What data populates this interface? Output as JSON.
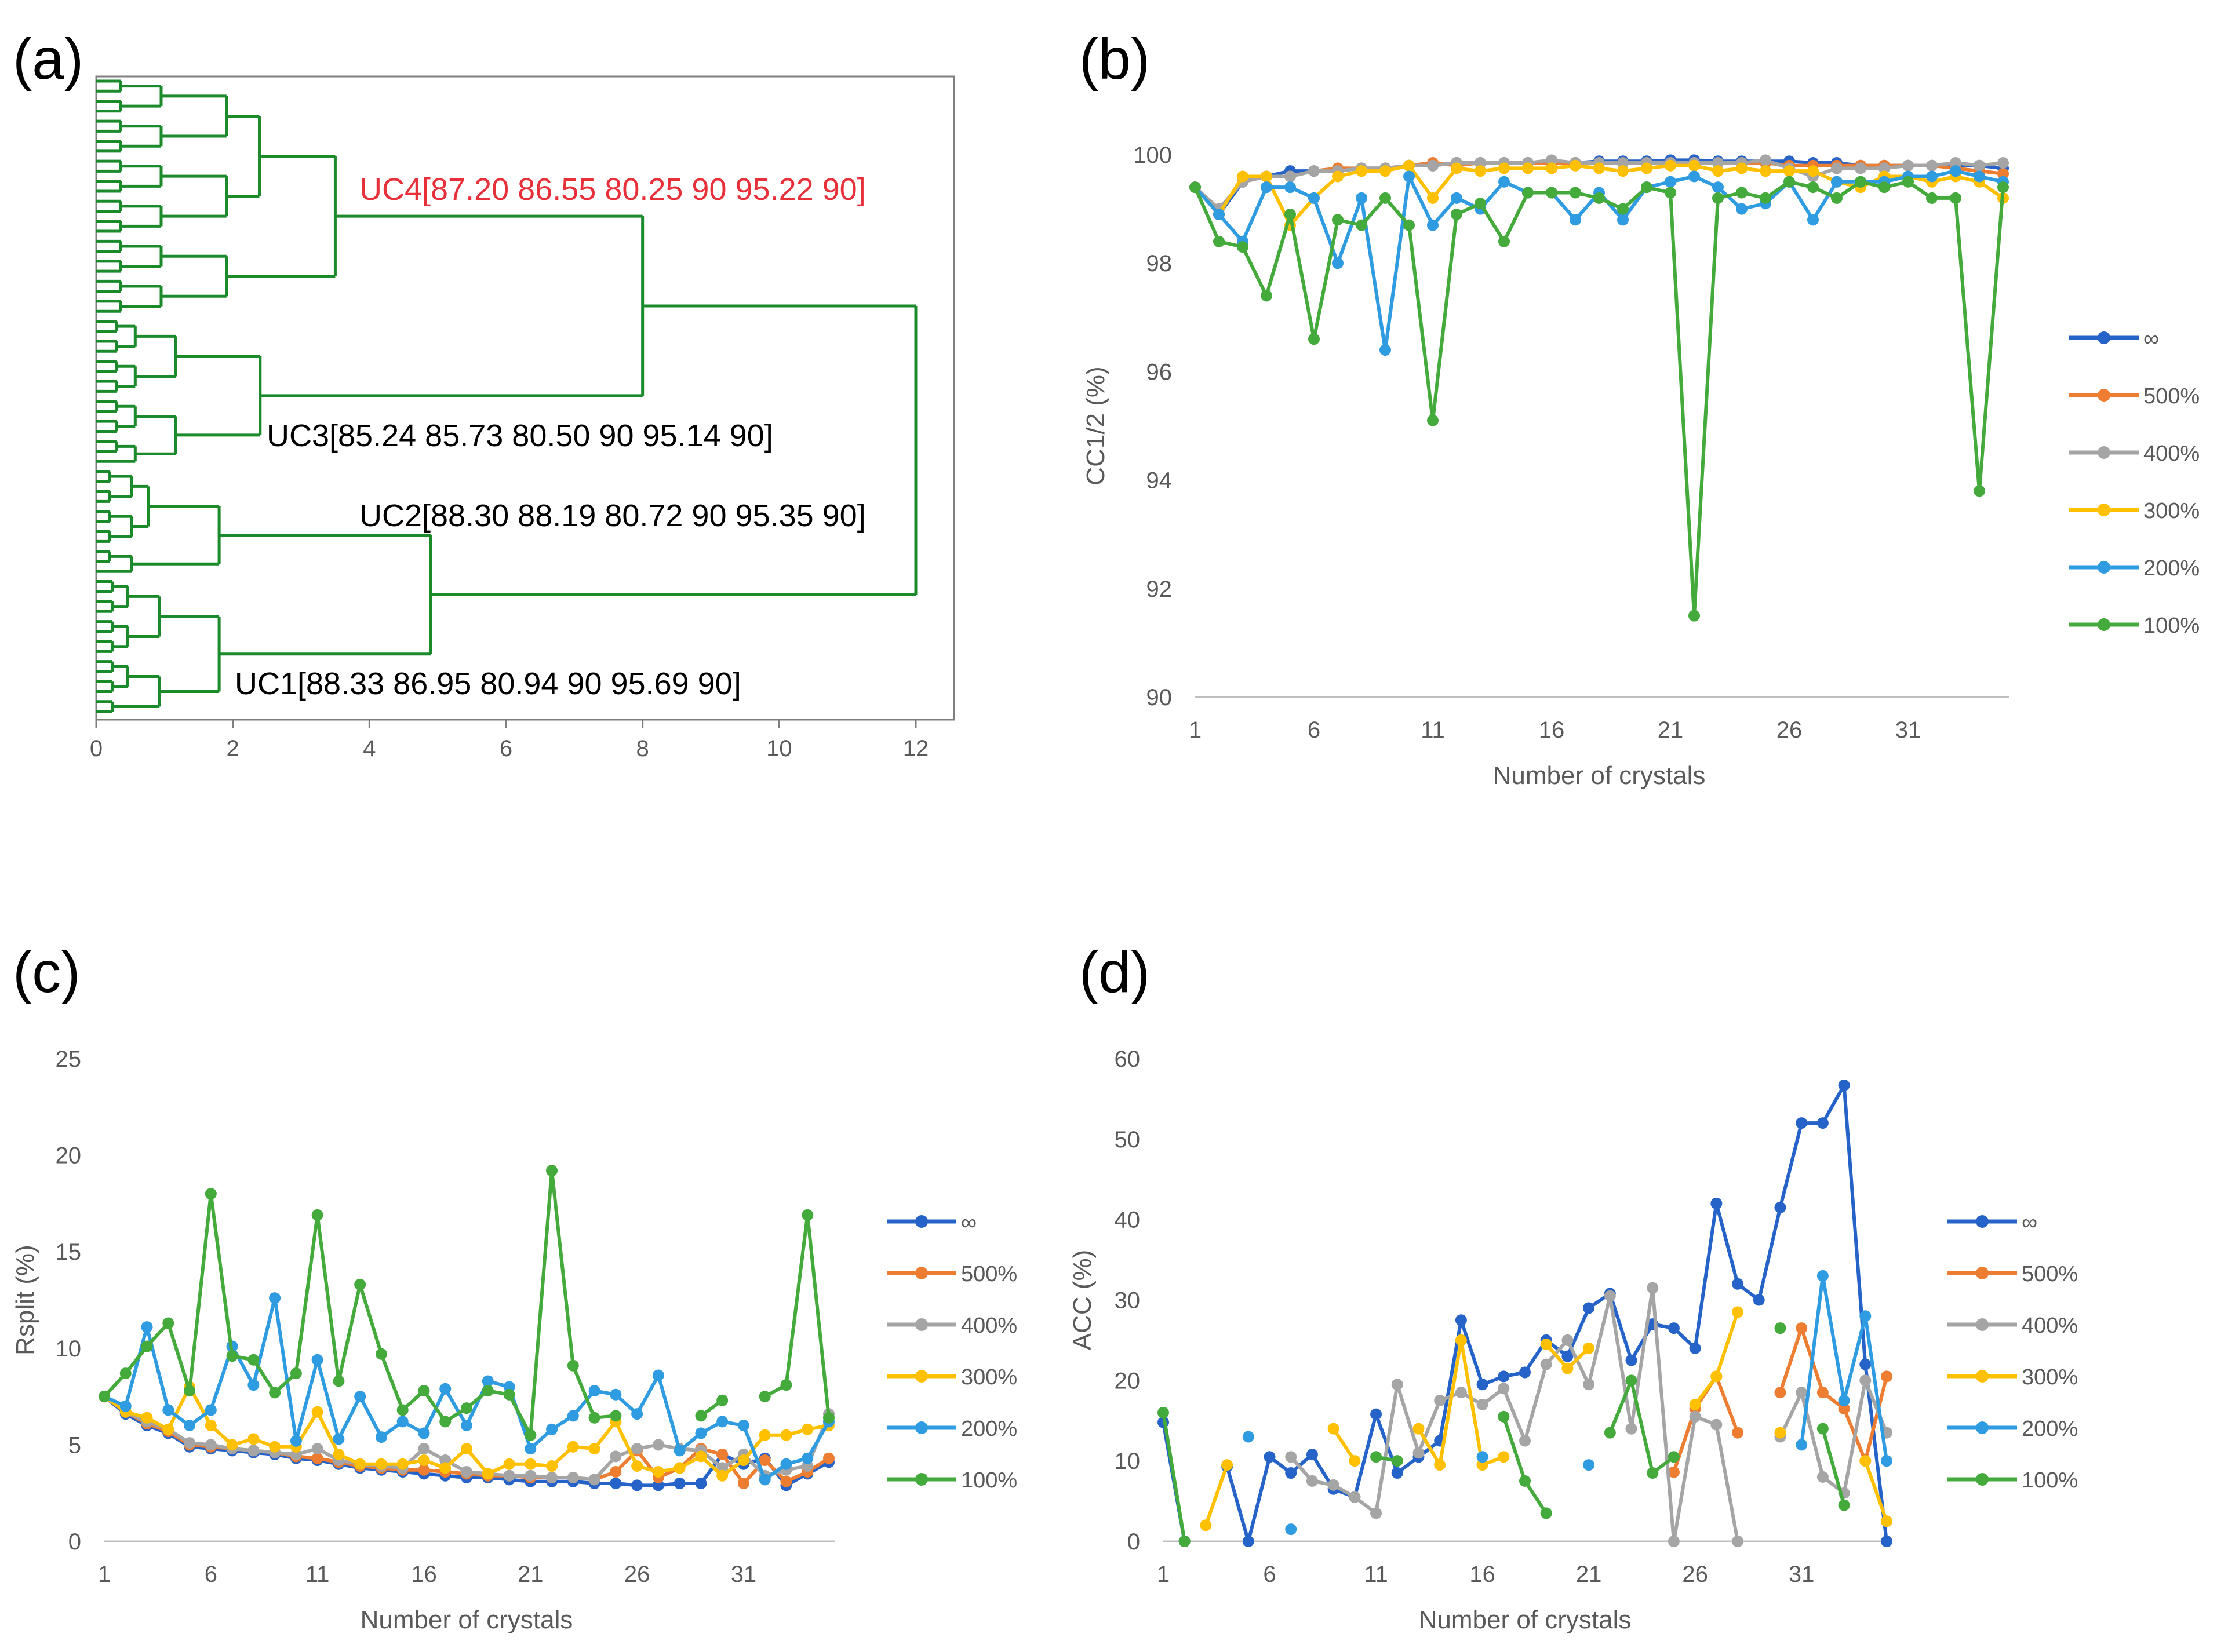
{
  "colors": {
    "inf": "#2563c8",
    "p500": "#ed7d31",
    "p400": "#a5a5a5",
    "p300": "#ffc000",
    "p200": "#2f9be0",
    "p100": "#44aa3c",
    "dendro": "#1a8a2a",
    "highlight": "#e8303a"
  },
  "panels": {
    "a": "(a)",
    "b": "(b)",
    "c": "(c)",
    "d": "(d)"
  },
  "chart_data": [
    {
      "id": "a",
      "type": "dendrogram",
      "x_ticks": [
        "0",
        "2",
        "4",
        "6",
        "8",
        "10",
        "12"
      ],
      "xlim": [
        0,
        12
      ],
      "clusters": [
        {
          "label": "UC4[87.20 86.55 80.25 90 95.22 90]",
          "height": 3.5,
          "highlight": true
        },
        {
          "label": "UC3[85.24 85.73 80.50 90 95.14 90]",
          "height": 2.4,
          "highlight": false
        },
        {
          "label": "UC2[88.30 88.19 80.72 90 95.35 90]",
          "height": 1.8,
          "highlight": false
        },
        {
          "label": "UC1[88.33 86.95 80.94 90 95.69 90]",
          "height": 1.8,
          "highlight": false
        }
      ],
      "merges": [
        {
          "left": "UC4",
          "right": "UC3",
          "height": 8.0
        },
        {
          "left": "UC2",
          "right": "UC1",
          "height": 4.9
        },
        {
          "left": "UC4+UC3",
          "right": "UC2+UC1",
          "height": 12.0
        }
      ]
    },
    {
      "id": "b",
      "type": "line",
      "ylabel": "CC1/2 (%)",
      "xlabel": "Number of crystals",
      "ylim": [
        90,
        100
      ],
      "xlim": [
        1,
        35
      ],
      "y_ticks": [
        "90",
        "92",
        "94",
        "96",
        "98",
        "100"
      ],
      "x_ticks": [
        "1",
        "6",
        "11",
        "16",
        "21",
        "26",
        "31"
      ],
      "series": [
        {
          "name": "∞",
          "color_key": "inf",
          "values": [
            99.4,
            98.9,
            99.5,
            99.6,
            99.7,
            99.7,
            99.7,
            99.75,
            99.75,
            99.8,
            99.8,
            99.85,
            99.85,
            99.85,
            99.85,
            99.85,
            99.85,
            99.88,
            99.88,
            99.88,
            99.9,
            99.9,
            99.88,
            99.88,
            99.88,
            99.88,
            99.85,
            99.85,
            99.8,
            99.8,
            99.8,
            99.8,
            99.8,
            99.8,
            99.75
          ]
        },
        {
          "name": "500%",
          "color_key": "p500",
          "values": [
            99.4,
            99.0,
            99.5,
            99.6,
            99.6,
            99.7,
            99.75,
            99.75,
            99.75,
            99.8,
            99.85,
            99.8,
            99.85,
            99.85,
            99.85,
            99.85,
            99.85,
            99.85,
            99.85,
            99.85,
            99.85,
            99.85,
            99.85,
            99.85,
            99.85,
            99.8,
            99.8,
            99.8,
            99.8,
            99.8,
            99.8,
            99.8,
            99.75,
            99.7,
            99.65
          ]
        },
        {
          "name": "400%",
          "color_key": "p400",
          "values": [
            99.4,
            99.0,
            99.5,
            99.6,
            99.6,
            99.7,
            99.7,
            99.75,
            99.75,
            99.8,
            99.8,
            99.85,
            99.85,
            99.85,
            99.85,
            99.9,
            99.85,
            99.85,
            99.85,
            99.85,
            99.85,
            99.85,
            99.85,
            99.85,
            99.9,
            99.75,
            99.6,
            99.75,
            99.75,
            99.75,
            99.8,
            99.8,
            99.85,
            99.8,
            99.85
          ]
        },
        {
          "name": "300%",
          "color_key": "p300",
          "values": [
            99.4,
            98.9,
            99.6,
            99.6,
            98.7,
            99.2,
            99.6,
            99.7,
            99.7,
            99.8,
            99.2,
            99.75,
            99.7,
            99.75,
            99.75,
            99.75,
            99.8,
            99.75,
            99.7,
            99.75,
            99.8,
            99.8,
            99.7,
            99.75,
            99.7,
            99.7,
            99.7,
            99.5,
            99.4,
            99.6,
            99.6,
            99.5,
            99.6,
            99.5,
            99.2
          ]
        },
        {
          "name": "200%",
          "color_key": "p200",
          "values": [
            99.4,
            98.9,
            98.4,
            99.4,
            99.4,
            99.2,
            98.0,
            99.2,
            96.4,
            99.6,
            98.7,
            99.2,
            99.0,
            99.5,
            99.3,
            99.3,
            98.8,
            99.3,
            98.8,
            99.4,
            99.5,
            99.6,
            99.4,
            99.0,
            99.1,
            99.5,
            98.8,
            99.5,
            99.5,
            99.5,
            99.6,
            99.6,
            99.7,
            99.6,
            99.5
          ]
        },
        {
          "name": "100%",
          "color_key": "p100",
          "values": [
            99.4,
            98.4,
            98.3,
            97.4,
            98.9,
            96.6,
            98.8,
            98.7,
            99.2,
            98.7,
            95.1,
            98.9,
            99.1,
            98.4,
            99.3,
            99.3,
            99.3,
            99.2,
            99.0,
            99.4,
            99.3,
            91.5,
            99.2,
            99.3,
            99.2,
            99.5,
            99.4,
            99.2,
            99.5,
            99.4,
            99.5,
            99.2,
            99.2,
            93.8,
            99.4
          ]
        }
      ]
    },
    {
      "id": "c",
      "type": "line",
      "ylabel": "Rsplit (%)",
      "xlabel": "Number of crystals",
      "ylim": [
        0,
        25
      ],
      "xlim": [
        1,
        35
      ],
      "y_ticks": [
        "0",
        "5",
        "10",
        "15",
        "20",
        "25"
      ],
      "x_ticks": [
        "1",
        "6",
        "11",
        "16",
        "21",
        "26",
        "31"
      ],
      "series": [
        {
          "name": "∞",
          "color_key": "inf",
          "values": [
            7.5,
            6.6,
            6.0,
            5.6,
            4.9,
            4.8,
            4.7,
            4.6,
            4.5,
            4.3,
            4.2,
            4.0,
            3.8,
            3.7,
            3.6,
            3.5,
            3.4,
            3.3,
            3.3,
            3.2,
            3.1,
            3.1,
            3.1,
            3.0,
            3.0,
            2.9,
            2.9,
            3.0,
            3.0,
            4.5,
            4.0,
            4.3,
            2.9,
            3.5,
            4.1
          ]
        },
        {
          "name": "500%",
          "color_key": "p500",
          "values": [
            7.5,
            6.7,
            6.1,
            5.7,
            5.0,
            4.9,
            4.8,
            4.7,
            4.6,
            4.4,
            4.3,
            4.1,
            3.9,
            3.8,
            3.7,
            3.7,
            3.6,
            3.5,
            3.4,
            3.4,
            3.3,
            3.3,
            3.3,
            3.2,
            3.6,
            4.7,
            3.3,
            3.8,
            4.8,
            4.5,
            3.0,
            4.2,
            3.1,
            3.6,
            4.3
          ]
        },
        {
          "name": "400%",
          "color_key": "p400",
          "values": [
            7.5,
            6.7,
            6.2,
            5.8,
            5.1,
            5.0,
            4.8,
            4.7,
            4.6,
            4.5,
            4.8,
            4.2,
            4.0,
            3.9,
            3.8,
            4.8,
            4.2,
            3.6,
            3.5,
            3.4,
            3.4,
            3.3,
            3.3,
            3.2,
            4.4,
            4.8,
            5.0,
            4.8,
            4.7,
            3.8,
            4.5,
            3.4,
            3.7,
            3.9,
            6.6
          ]
        },
        {
          "name": "300%",
          "color_key": "p300",
          "values": [
            7.5,
            6.7,
            6.4,
            5.8,
            8.0,
            6.0,
            5.0,
            5.3,
            4.9,
            4.9,
            6.7,
            4.5,
            4.0,
            4.0,
            4.0,
            4.2,
            3.8,
            4.8,
            3.5,
            4.0,
            4.0,
            3.9,
            4.9,
            4.8,
            6.2,
            3.9,
            3.6,
            3.8,
            4.4,
            3.4,
            4.2,
            5.5,
            5.5,
            5.8,
            6.0
          ]
        },
        {
          "name": "200%",
          "color_key": "p200",
          "values": [
            7.5,
            7.0,
            11.1,
            6.8,
            6.0,
            6.8,
            10.1,
            8.1,
            12.6,
            5.2,
            9.4,
            5.3,
            7.5,
            5.4,
            6.2,
            5.6,
            7.9,
            6.0,
            8.3,
            8.0,
            4.8,
            5.8,
            6.5,
            7.8,
            7.6,
            6.6,
            8.6,
            4.7,
            5.6,
            6.2,
            6.0,
            3.2,
            4.0,
            4.3,
            6.2
          ]
        },
        {
          "name": "100%",
          "color_key": "p100",
          "values": [
            7.5,
            8.7,
            10.1,
            11.3,
            7.8,
            18.0,
            9.6,
            9.4,
            7.7,
            8.7,
            16.9,
            8.3,
            13.3,
            9.7,
            6.8,
            7.8,
            6.2,
            6.9,
            7.8,
            7.6,
            5.5,
            19.2,
            9.1,
            6.4,
            6.5,
            null,
            null,
            null,
            6.5,
            7.3,
            null,
            7.5,
            8.1,
            16.9,
            6.4
          ]
        }
      ]
    },
    {
      "id": "d",
      "type": "line",
      "ylabel": "ACC (%)",
      "xlabel": "Number of crystals",
      "ylim": [
        0,
        60
      ],
      "xlim": [
        1,
        35
      ],
      "y_ticks": [
        "0",
        "10",
        "20",
        "30",
        "40",
        "50",
        "60"
      ],
      "x_ticks": [
        "1",
        "6",
        "11",
        "16",
        "21",
        "26",
        "31"
      ],
      "series": [
        {
          "name": "∞",
          "color_key": "inf",
          "values": [
            14.8,
            0,
            null,
            9.3,
            0,
            10.5,
            8.5,
            10.8,
            6.5,
            5.5,
            15.8,
            8.5,
            10.5,
            12.5,
            27.5,
            19.5,
            20.5,
            21.0,
            25.0,
            23.0,
            29.0,
            30.8,
            22.5,
            27.0,
            26.5,
            24.0,
            42.0,
            32.0,
            30.0,
            41.5,
            52.0,
            52.0,
            56.7,
            22.0,
            0
          ]
        },
        {
          "name": "500%",
          "color_key": "p500",
          "values": [
            null,
            null,
            null,
            null,
            null,
            null,
            null,
            null,
            null,
            null,
            null,
            null,
            null,
            null,
            null,
            null,
            null,
            null,
            null,
            null,
            null,
            null,
            null,
            null,
            8.6,
            16.5,
            20.5,
            13.5,
            null,
            18.5,
            26.5,
            18.5,
            16.5,
            10.0,
            20.5
          ]
        },
        {
          "name": "400%",
          "color_key": "p400",
          "values": [
            null,
            null,
            null,
            null,
            null,
            null,
            10.5,
            7.5,
            7.0,
            5.5,
            3.5,
            19.5,
            11.0,
            17.5,
            18.5,
            17.0,
            19.0,
            12.5,
            22.0,
            25.0,
            19.5,
            30.5,
            14.0,
            31.5,
            0,
            15.5,
            14.5,
            0,
            null,
            13.0,
            18.5,
            8.0,
            6.0,
            20.0,
            13.5
          ]
        },
        {
          "name": "300%",
          "color_key": "p300",
          "values": [
            null,
            null,
            2.0,
            9.5,
            null,
            null,
            null,
            null,
            14.0,
            10.0,
            null,
            null,
            14.0,
            9.5,
            25.0,
            9.5,
            10.5,
            null,
            24.5,
            21.5,
            24.0,
            null,
            null,
            null,
            null,
            17.0,
            20.5,
            28.5,
            null,
            13.5,
            null,
            null,
            null,
            10.0,
            2.5
          ]
        },
        {
          "name": "200%",
          "color_key": "p200",
          "values": [
            null,
            null,
            null,
            null,
            13.0,
            null,
            1.5,
            null,
            null,
            null,
            null,
            null,
            null,
            null,
            null,
            10.5,
            null,
            null,
            null,
            null,
            9.5,
            null,
            null,
            null,
            null,
            null,
            null,
            null,
            null,
            null,
            12.0,
            33.0,
            17.5,
            28.0,
            10.0
          ]
        },
        {
          "name": "100%",
          "color_key": "p100",
          "values": [
            16.0,
            0,
            null,
            null,
            null,
            null,
            null,
            null,
            null,
            null,
            10.5,
            10.0,
            null,
            null,
            null,
            null,
            15.5,
            7.5,
            3.5,
            null,
            null,
            13.5,
            20.0,
            8.5,
            10.5,
            null,
            null,
            null,
            null,
            26.5,
            null,
            14.0,
            4.5,
            null,
            null
          ]
        }
      ]
    }
  ]
}
